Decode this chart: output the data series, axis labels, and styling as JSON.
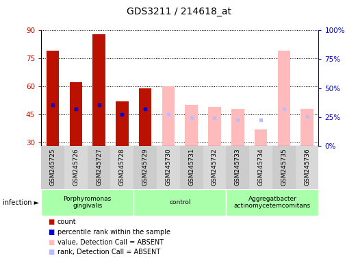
{
  "title": "GDS3211 / 214618_at",
  "samples": [
    "GSM245725",
    "GSM245726",
    "GSM245727",
    "GSM245728",
    "GSM245729",
    "GSM245730",
    "GSM245731",
    "GSM245732",
    "GSM245733",
    "GSM245734",
    "GSM245735",
    "GSM245736"
  ],
  "count_values": [
    79,
    62,
    88,
    52,
    59,
    null,
    null,
    null,
    null,
    null,
    null,
    null
  ],
  "rank_values": [
    50,
    48,
    50,
    45,
    48,
    null,
    null,
    null,
    null,
    null,
    null,
    null
  ],
  "absent_value": [
    null,
    null,
    null,
    null,
    null,
    60,
    50,
    49,
    48,
    37,
    79,
    48
  ],
  "absent_rank": [
    null,
    null,
    null,
    null,
    null,
    45,
    43,
    43,
    42,
    42,
    48,
    44
  ],
  "ylim_left": [
    28,
    90
  ],
  "ylim_right": [
    0,
    100
  ],
  "yticks_left": [
    30,
    45,
    60,
    75,
    90
  ],
  "yticks_right": [
    0,
    25,
    50,
    75,
    100
  ],
  "group_spans": [
    {
      "label": "Porphyromonas\ngingivalis",
      "start": 0,
      "end": 3,
      "color": "#aaffaa"
    },
    {
      "label": "control",
      "start": 4,
      "end": 7,
      "color": "#aaffaa"
    },
    {
      "label": "Aggregatbacter\nactinomycetemcomitans",
      "start": 8,
      "end": 11,
      "color": "#aaffaa"
    }
  ],
  "color_count": "#bb1100",
  "color_rank_dot": "#0000cc",
  "color_absent_value": "#ffbbbb",
  "color_absent_rank": "#bbbbff",
  "left_axis_color": "#bb1100",
  "right_axis_color": "#0000cc",
  "legend_items": [
    {
      "color": "#bb1100",
      "label": "count"
    },
    {
      "color": "#0000cc",
      "label": "percentile rank within the sample"
    },
    {
      "color": "#ffbbbb",
      "label": "value, Detection Call = ABSENT"
    },
    {
      "color": "#bbbbff",
      "label": "rank, Detection Call = ABSENT"
    }
  ]
}
